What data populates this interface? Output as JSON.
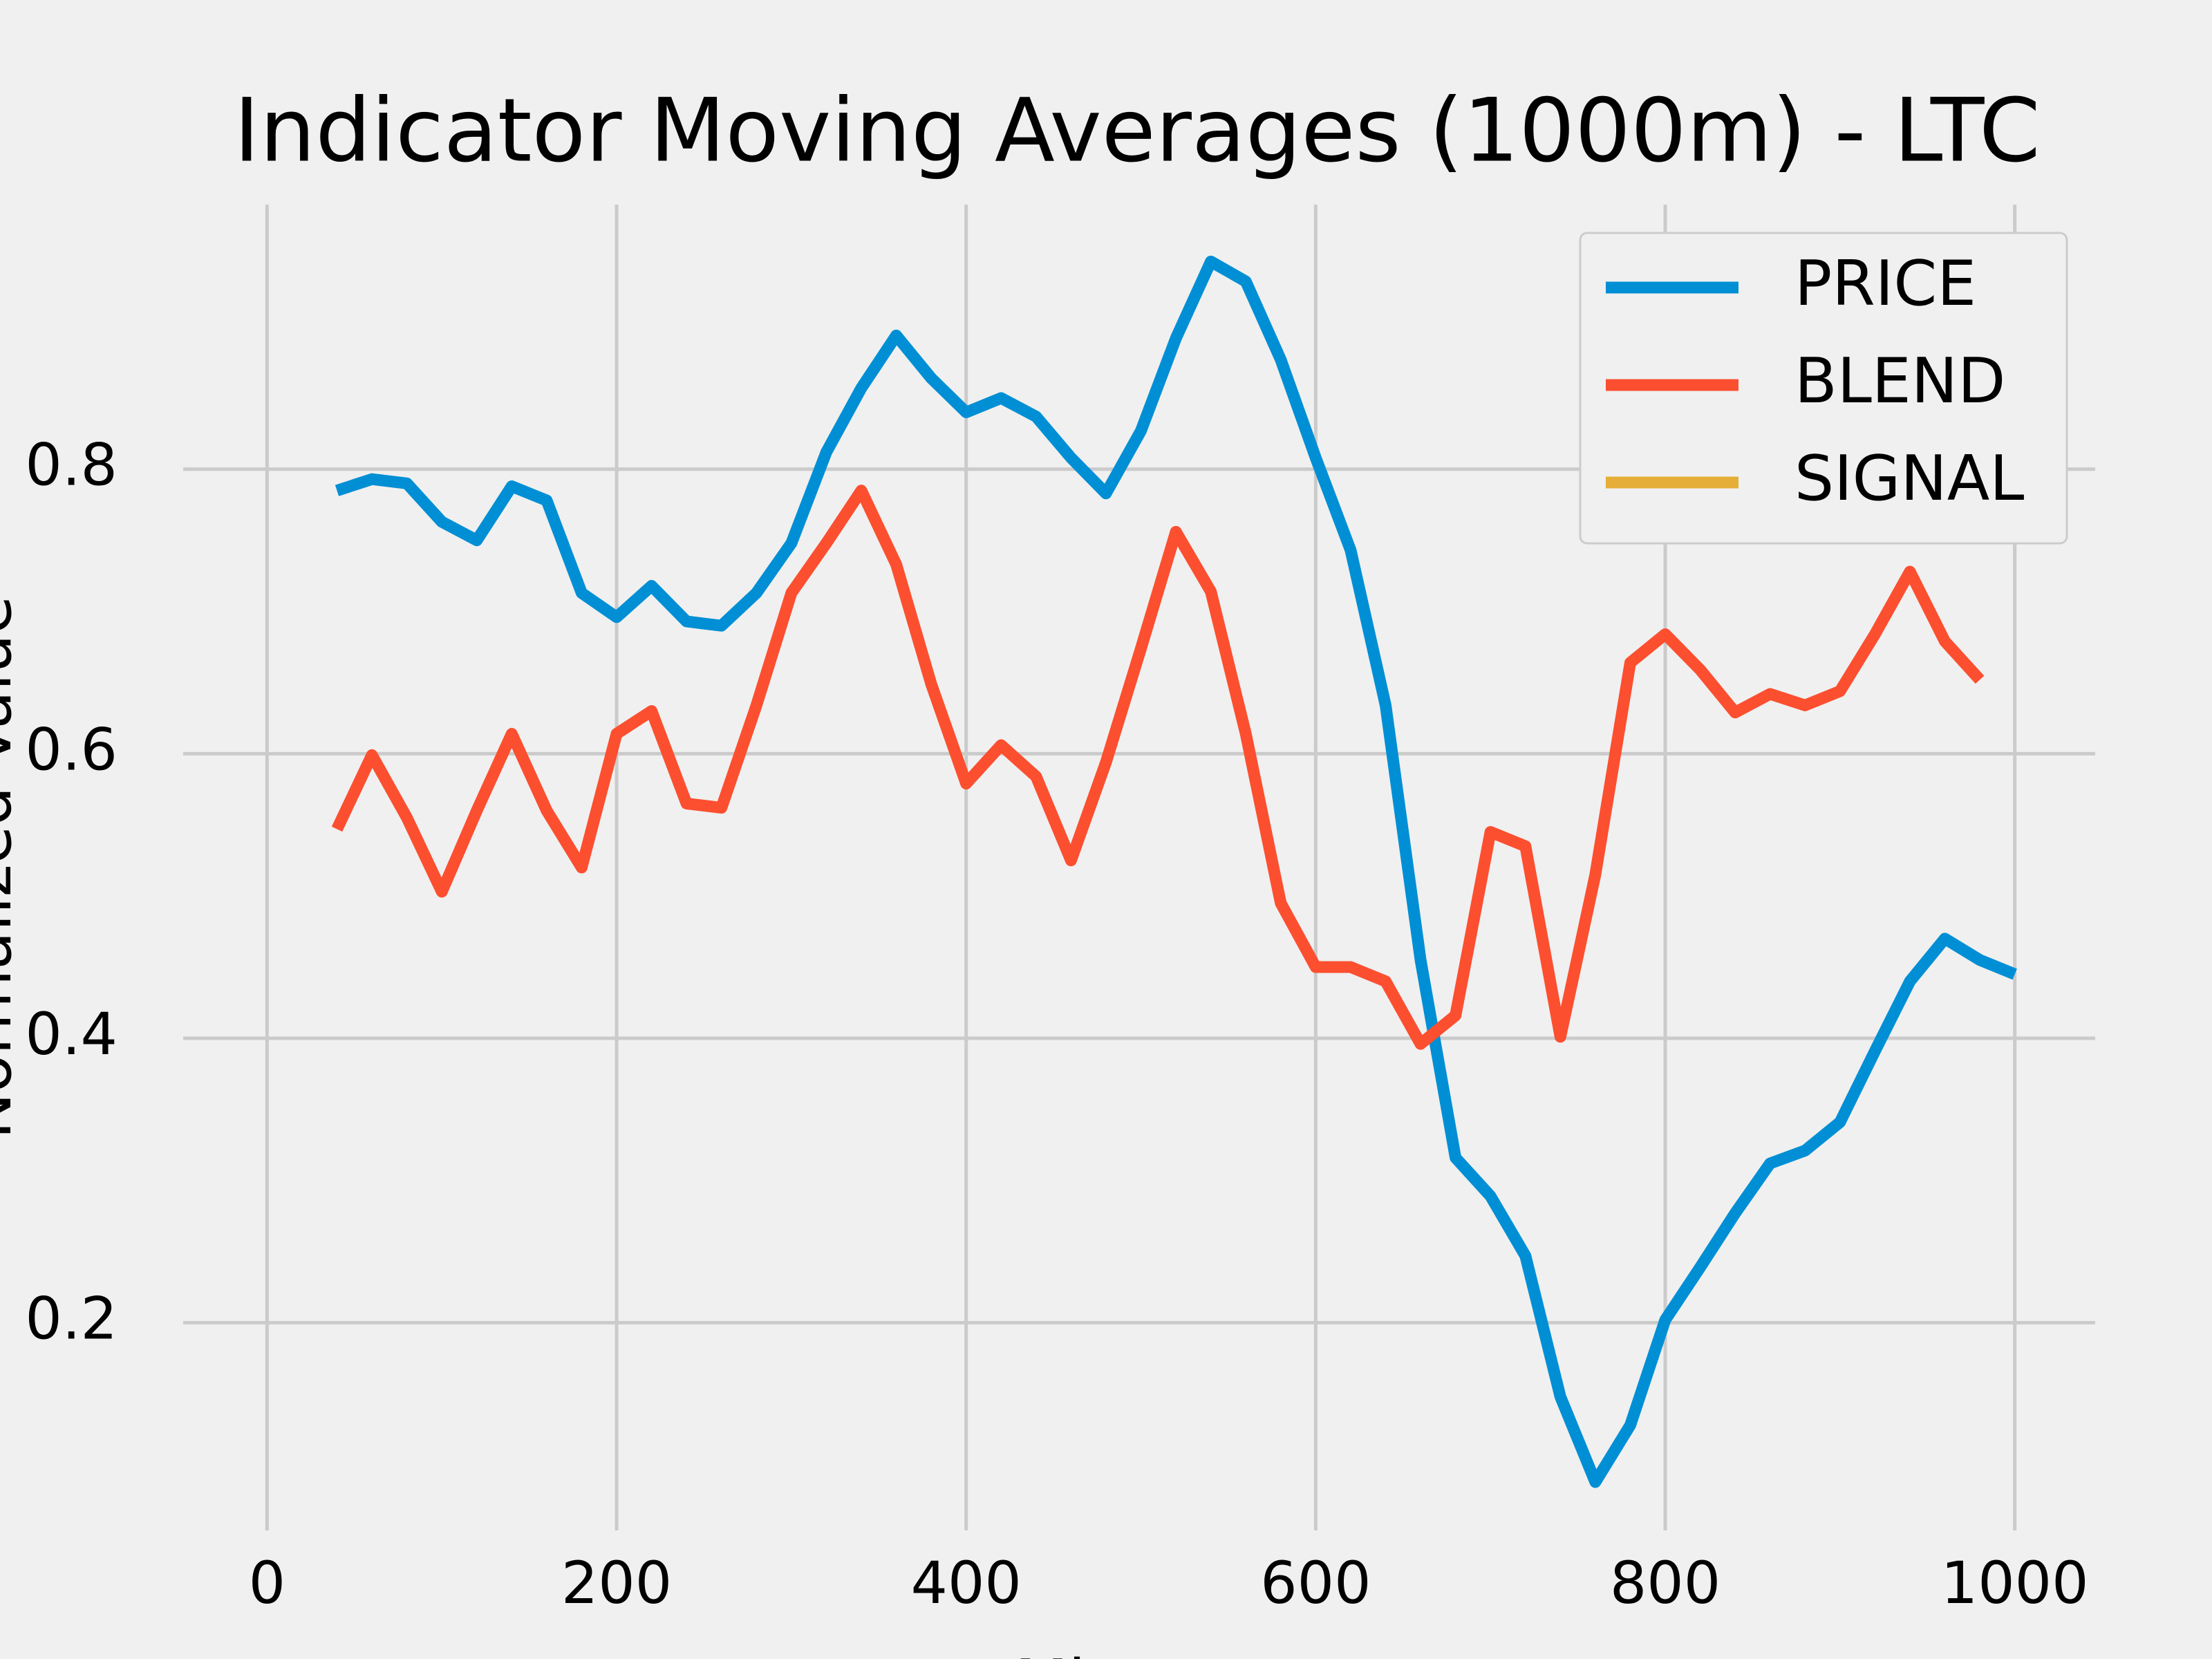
{
  "chart_data": {
    "type": "line",
    "title": "Indicator Moving Averages (1000m) - LTC",
    "xlabel": "Minutes",
    "ylabel": "Normalized Value",
    "x": [
      40,
      60,
      80,
      100,
      120,
      140,
      160,
      180,
      200,
      220,
      240,
      260,
      280,
      300,
      320,
      340,
      360,
      380,
      400,
      420,
      440,
      460,
      480,
      500,
      520,
      540,
      560,
      580,
      600,
      620,
      640,
      660,
      680,
      700,
      720,
      740,
      760,
      780,
      800,
      820,
      840,
      860,
      880,
      900,
      920,
      940,
      960,
      980,
      1000
    ],
    "series": [
      {
        "name": "PRICE",
        "color": "#008fd5",
        "values": [
          0.785,
          0.793,
          0.79,
          0.763,
          0.75,
          0.788,
          0.778,
          0.713,
          0.696,
          0.718,
          0.693,
          0.69,
          0.713,
          0.748,
          0.812,
          0.857,
          0.894,
          0.864,
          0.84,
          0.85,
          0.837,
          0.808,
          0.783,
          0.827,
          0.892,
          0.946,
          0.932,
          0.877,
          0.808,
          0.743,
          0.634,
          0.455,
          0.316,
          0.289,
          0.247,
          0.148,
          0.088,
          0.128,
          0.202,
          0.239,
          0.277,
          0.312,
          0.321,
          0.341,
          0.391,
          0.44,
          0.47,
          0.455,
          0.445
        ]
      },
      {
        "name": "BLEND",
        "color": "#fc4f30",
        "values": [
          0.547,
          0.599,
          0.555,
          0.503,
          0.56,
          0.614,
          0.56,
          0.52,
          0.614,
          0.63,
          0.565,
          0.562,
          0.634,
          0.713,
          0.748,
          0.785,
          0.733,
          0.649,
          0.579,
          0.606,
          0.584,
          0.525,
          0.594,
          0.674,
          0.756,
          0.714,
          0.614,
          0.495,
          0.45,
          0.45,
          0.44,
          0.396,
          0.416,
          0.545,
          0.535,
          0.401,
          0.515,
          0.664,
          0.684,
          0.659,
          0.629,
          0.642,
          0.634,
          0.644,
          0.684,
          0.728,
          0.679,
          0.652,
          null
        ]
      },
      {
        "name": "SIGNAL",
        "color": "#e5ae38",
        "values": [
          null,
          null,
          null,
          null,
          null,
          null,
          null,
          null,
          null,
          null,
          null,
          null,
          null,
          null,
          null,
          null,
          null,
          null,
          null,
          null,
          null,
          null,
          null,
          null,
          null,
          null,
          null,
          null,
          null,
          null,
          null,
          null,
          null,
          null,
          null,
          null,
          null,
          null,
          null,
          null,
          null,
          null,
          null,
          null,
          null,
          null,
          null,
          null,
          null
        ]
      }
    ],
    "xlim": [
      -48,
      1046
    ],
    "ylim": [
      0.054,
      0.986
    ],
    "xticks": [
      0,
      200,
      400,
      600,
      800,
      1000
    ],
    "yticks": [
      0.2,
      0.4,
      0.6,
      0.8
    ],
    "grid": true,
    "legend": "upper right"
  }
}
